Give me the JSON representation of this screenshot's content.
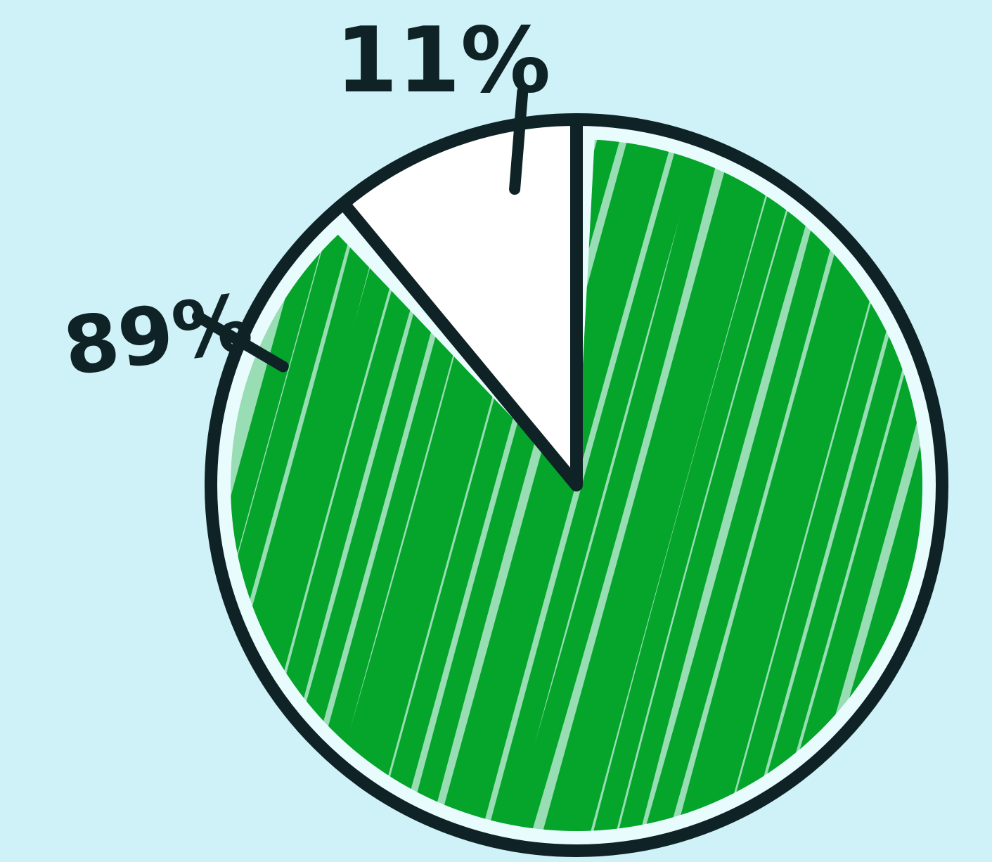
{
  "chart_data": {
    "type": "pie",
    "title": "",
    "slices": [
      {
        "label": "89%",
        "value": 89,
        "color": "#05a52b",
        "fill_style": "hand-scribbled hatching"
      },
      {
        "label": "11%",
        "value": 11,
        "color": "#ffffff",
        "fill_style": "plain"
      }
    ]
  },
  "colors": {
    "background": "#cff1f8",
    "outline": "#0f2327",
    "hatch_gap": "#e8fbfd"
  }
}
